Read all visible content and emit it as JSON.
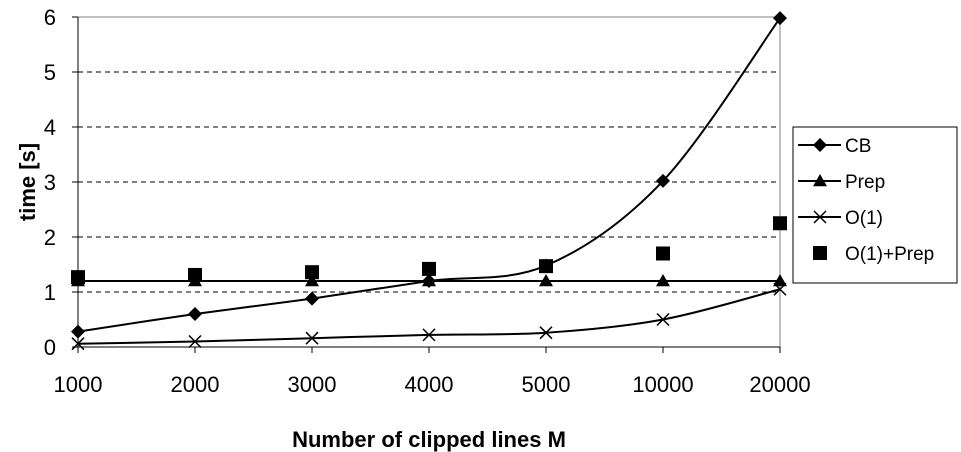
{
  "chart_data": {
    "type": "line",
    "xlabel": "Number of clipped lines M",
    "ylabel": "time [s]",
    "categories": [
      "1000",
      "2000",
      "3000",
      "4000",
      "5000",
      "10000",
      "20000"
    ],
    "ylim": [
      0,
      6
    ],
    "yticks": [
      "0",
      "1",
      "2",
      "3",
      "4",
      "5",
      "6"
    ],
    "grid": "horizontal dashed",
    "legend": "right",
    "series": [
      {
        "name": "CB",
        "marker": "diamond",
        "line": true,
        "color": "#000000",
        "values": [
          0.28,
          0.6,
          0.88,
          1.2,
          1.48,
          3.02,
          5.98
        ]
      },
      {
        "name": "Prep",
        "marker": "triangle",
        "line": true,
        "color": "#000000",
        "values": [
          1.2,
          1.2,
          1.2,
          1.2,
          1.2,
          1.2,
          1.2
        ]
      },
      {
        "name": "O(1)",
        "marker": "x",
        "line": true,
        "color": "#000000",
        "values": [
          0.06,
          0.1,
          0.16,
          0.22,
          0.26,
          0.5,
          1.05
        ]
      },
      {
        "name": "O(1)+Prep",
        "marker": "square",
        "line": false,
        "color": "#000000",
        "values": [
          1.27,
          1.31,
          1.36,
          1.42,
          1.47,
          1.7,
          2.25
        ]
      }
    ]
  }
}
